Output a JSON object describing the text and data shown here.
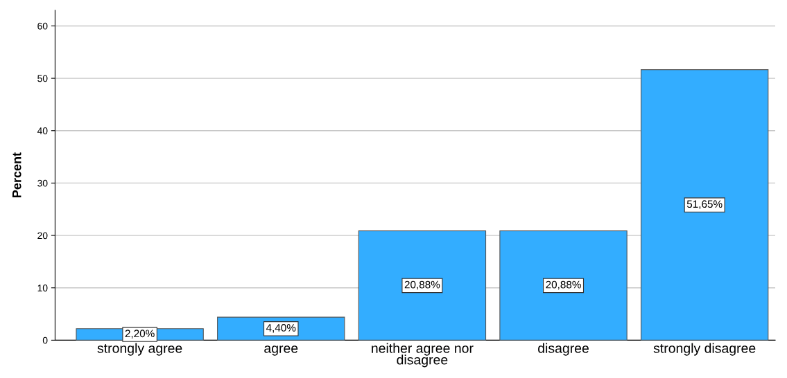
{
  "chart_data": {
    "type": "bar",
    "ylabel": "Percent",
    "categories": [
      "strongly agree",
      "agree",
      "neither agree nor\ndisagree",
      "disagree",
      "strongly disagree"
    ],
    "values": [
      2.2,
      4.4,
      20.88,
      20.88,
      51.65
    ],
    "value_labels": [
      "2,20%",
      "4,40%",
      "20,88%",
      "20,88%",
      "51,65%"
    ],
    "color": "#33adff",
    "ylim": [
      0,
      63
    ],
    "yticks": [
      0,
      10,
      20,
      30,
      40,
      50,
      60
    ],
    "grid": "y"
  }
}
